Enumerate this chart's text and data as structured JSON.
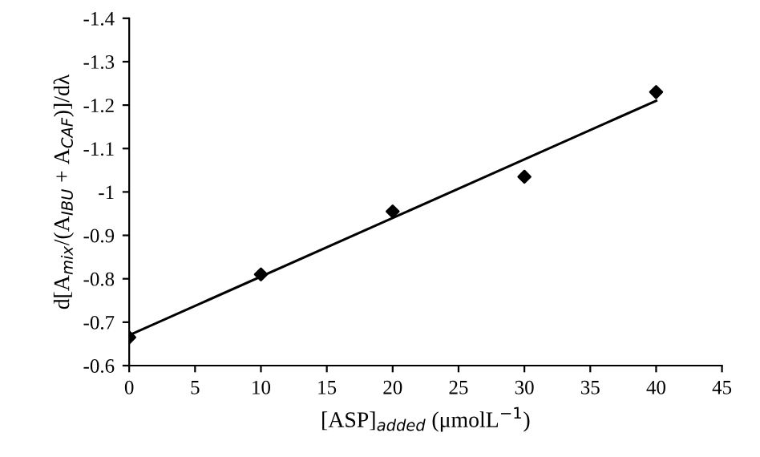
{
  "chart_data": {
    "type": "scatter",
    "xlabel": "[ASP]$_{added}$ (μmolL$^{−1}$)",
    "ylabel": "d[A$_{mix}$/(A$_{IBU}$ + A$_{CAF}$)]/dλ",
    "series": [
      {
        "color": "#000000",
        "marker": "diamond",
        "x": [
          0,
          10,
          20,
          30,
          40
        ],
        "values": [
          -0.665,
          -0.81,
          -0.955,
          -1.035,
          -1.23
        ]
      },
      {
        "type": "line",
        "color": "#000000",
        "marker": "none",
        "line_style": "solid",
        "x": [
          0,
          40
        ],
        "values": [
          -0.67,
          -1.21
        ]
      }
    ],
    "xlim": [
      0,
      45
    ],
    "xticks": [
      0,
      5,
      10,
      15,
      20,
      25,
      30,
      35,
      40,
      45
    ],
    "ylim": [
      -0.6,
      -1.4
    ],
    "yticks": [
      {
        "value": -1.4,
        "label": "-1.4"
      },
      {
        "value": -1.3,
        "label": "-1.3"
      },
      {
        "value": -1.2,
        "label": "-1.2"
      },
      {
        "value": -1.1,
        "label": "-1.1"
      },
      {
        "value": -1.0,
        "label": "-1"
      },
      {
        "value": -0.9,
        "label": "-0.9"
      },
      {
        "value": -0.8,
        "label": "-0.8"
      },
      {
        "value": -0.7,
        "label": "-0.7"
      },
      {
        "value": -0.6,
        "label": "-0.6"
      }
    ],
    "grid": false,
    "legend": false
  }
}
